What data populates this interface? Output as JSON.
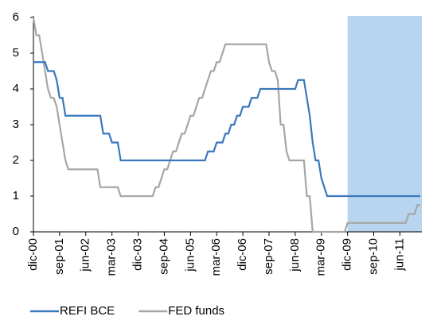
{
  "chart_data": {
    "type": "line",
    "categories": [
      "dic-00",
      null,
      null,
      null,
      null,
      null,
      null,
      null,
      null,
      "sep-01",
      null,
      null,
      null,
      null,
      null,
      null,
      null,
      null,
      "jun-02",
      null,
      null,
      null,
      null,
      null,
      null,
      null,
      null,
      "mar-03",
      null,
      null,
      null,
      null,
      null,
      null,
      null,
      null,
      "dic-03",
      null,
      null,
      null,
      null,
      null,
      null,
      null,
      null,
      "sep-04",
      null,
      null,
      null,
      null,
      null,
      null,
      null,
      null,
      "jun-05",
      null,
      null,
      null,
      null,
      null,
      null,
      null,
      null,
      "mar-06",
      null,
      null,
      null,
      null,
      null,
      null,
      null,
      null,
      "dic-06",
      null,
      null,
      null,
      null,
      null,
      null,
      null,
      null,
      "sep-07",
      null,
      null,
      null,
      null,
      null,
      null,
      null,
      null,
      "jun-08",
      null,
      null,
      null,
      null,
      null,
      null,
      null,
      null,
      "mar-09",
      null,
      null,
      null,
      null,
      null,
      null,
      null,
      null,
      "dic-09",
      null,
      null,
      null,
      null,
      null,
      null,
      null,
      null,
      "sep-10",
      null,
      null,
      null,
      null,
      null,
      null,
      null,
      null,
      "jun-11",
      null,
      null,
      null,
      null,
      null,
      null,
      null
    ],
    "series": [
      {
        "name": "REFI BCE",
        "color": "#3a78bd",
        "values": [
          4.75,
          4.75,
          4.75,
          4.75,
          4.75,
          4.5,
          4.5,
          4.5,
          4.25,
          3.75,
          3.75,
          3.25,
          3.25,
          3.25,
          3.25,
          3.25,
          3.25,
          3.25,
          3.25,
          3.25,
          3.25,
          3.25,
          3.25,
          3.25,
          2.75,
          2.75,
          2.75,
          2.5,
          2.5,
          2.5,
          2,
          2,
          2,
          2,
          2,
          2,
          2,
          2,
          2,
          2,
          2,
          2,
          2,
          2,
          2,
          2,
          2,
          2,
          2,
          2,
          2,
          2,
          2,
          2,
          2,
          2,
          2,
          2,
          2,
          2,
          2.25,
          2.25,
          2.25,
          2.5,
          2.5,
          2.5,
          2.75,
          2.75,
          3,
          3,
          3.25,
          3.25,
          3.5,
          3.5,
          3.5,
          3.75,
          3.75,
          3.75,
          4,
          4,
          4,
          4,
          4,
          4,
          4,
          4,
          4,
          4,
          4,
          4,
          4,
          4.25,
          4.25,
          4.25,
          3.75,
          3.25,
          2.5,
          2,
          2,
          1.5,
          1.25,
          1,
          1,
          1,
          1,
          1,
          1,
          1,
          1,
          1,
          1,
          1,
          1,
          1,
          1,
          1,
          1,
          1,
          1,
          1,
          1,
          1,
          1,
          1,
          1,
          1,
          1,
          1,
          1,
          1,
          1,
          1,
          1,
          1
        ]
      },
      {
        "name": "FED funds",
        "color": "#a6a6a6",
        "values": [
          6,
          5.5,
          5.5,
          5,
          4.5,
          4,
          3.75,
          3.75,
          3.5,
          3,
          2.5,
          2,
          1.75,
          1.75,
          1.75,
          1.75,
          1.75,
          1.75,
          1.75,
          1.75,
          1.75,
          1.75,
          1.75,
          1.25,
          1.25,
          1.25,
          1.25,
          1.25,
          1.25,
          1.25,
          1,
          1,
          1,
          1,
          1,
          1,
          1,
          1,
          1,
          1,
          1,
          1,
          1.25,
          1.25,
          1.5,
          1.75,
          1.75,
          2,
          2.25,
          2.25,
          2.5,
          2.75,
          2.75,
          3,
          3.25,
          3.25,
          3.5,
          3.75,
          3.75,
          4,
          4.25,
          4.5,
          4.5,
          4.75,
          4.75,
          5,
          5.25,
          5.25,
          5.25,
          5.25,
          5.25,
          5.25,
          5.25,
          5.25,
          5.25,
          5.25,
          5.25,
          5.25,
          5.25,
          5.25,
          5.25,
          4.75,
          4.5,
          4.5,
          4.25,
          3,
          3,
          2.25,
          2,
          2,
          2,
          2,
          2,
          2,
          1,
          1,
          0,
          0,
          0,
          0,
          0,
          0,
          0,
          0,
          0,
          0,
          0,
          0,
          0.25,
          0.25,
          0.25,
          0.25,
          0.25,
          0.25,
          0.25,
          0.25,
          0.25,
          0.25,
          0.25,
          0.25,
          0.25,
          0.25,
          0.25,
          0.25,
          0.25,
          0.25,
          0.25,
          0.25,
          0.25,
          0.5,
          0.5,
          0.5,
          0.75,
          0.75
        ]
      }
    ],
    "ylim": [
      0,
      6
    ],
    "yticks": [
      0,
      1,
      2,
      3,
      4,
      5,
      6
    ],
    "grid": false,
    "shaded_from": "dic-09",
    "shade_color": "#b8d5ef",
    "legend": "bottom"
  }
}
